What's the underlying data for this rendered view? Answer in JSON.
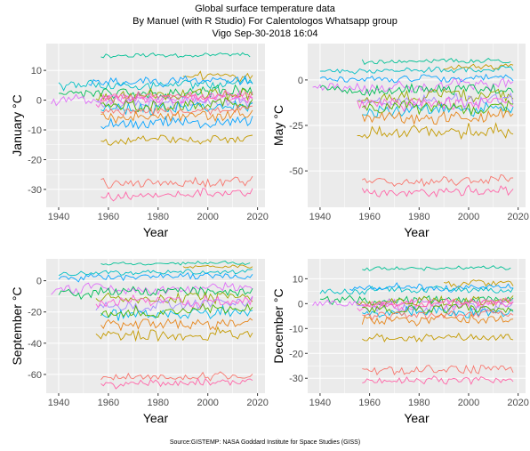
{
  "header": {
    "line1": "Global surface temperature data",
    "line2": "By Manuel (with R Studio) For Calentologos Whatsapp group",
    "line3": "Vigo Sep-30-2018 16:04"
  },
  "footer": {
    "source": "Source:GISTEMP: NASA Goddard Institute for Space Studies (GISS)"
  },
  "colors": {
    "panel_background": "#ebebeb",
    "grid_major": "#ffffff",
    "series_palette": [
      "#f8766d",
      "#e7861b",
      "#c49a00",
      "#95a900",
      "#53b400",
      "#00bc56",
      "#00c094",
      "#00bfc4",
      "#00b6eb",
      "#06a4ff",
      "#a58aff",
      "#df70f8",
      "#fb61d7",
      "#ff66a8"
    ]
  },
  "chart_data": [
    {
      "type": "line",
      "xlabel": "Year",
      "ylabel": "January °C",
      "xlim": [
        1935,
        2023
      ],
      "ylim": [
        -36,
        19
      ],
      "x_ticks": [
        1940,
        1960,
        1980,
        2000,
        2020
      ],
      "y_ticks": [
        10,
        0,
        -10,
        -20,
        -30
      ],
      "x_tick_labels": [
        "1940",
        "1960",
        "1980",
        "2000",
        "2020"
      ],
      "y_tick_labels": [
        "10",
        "0",
        "-10",
        "-20",
        "-30"
      ],
      "series": [
        {
          "color": "#00c094",
          "start": 1957,
          "end": 2017,
          "base": 15,
          "amp": 0.8
        },
        {
          "color": "#c49a00",
          "start": 1990,
          "end": 2018,
          "base": 8,
          "amp": 1.5
        },
        {
          "color": "#00bfc4",
          "start": 1940,
          "end": 2018,
          "base": 5,
          "amp": 1.5
        },
        {
          "color": "#06a4ff",
          "start": 1952,
          "end": 2018,
          "base": 6,
          "amp": 1.5
        },
        {
          "color": "#00bc56",
          "start": 1940,
          "end": 2018,
          "base": 2,
          "amp": 1.8
        },
        {
          "color": "#df70f8",
          "start": 1937,
          "end": 2018,
          "base": 0,
          "amp": 1.5
        },
        {
          "color": "#95a900",
          "start": 1955,
          "end": 2018,
          "base": 1,
          "amp": 2.0
        },
        {
          "color": "#a58aff",
          "start": 1955,
          "end": 2018,
          "base": -1,
          "amp": 2.0
        },
        {
          "color": "#fb61d7",
          "start": 1955,
          "end": 2018,
          "base": 0,
          "amp": 2.0
        },
        {
          "color": "#00b6eb",
          "start": 1957,
          "end": 2018,
          "base": -3,
          "amp": 2.0
        },
        {
          "color": "#53b400",
          "start": 1957,
          "end": 2018,
          "base": -2,
          "amp": 2.0
        },
        {
          "color": "#ff66a8",
          "start": 1957,
          "end": 2018,
          "base": 1,
          "amp": 1.5
        },
        {
          "color": "#f8766d",
          "start": 1957,
          "end": 2018,
          "base": -4,
          "amp": 1.5
        },
        {
          "color": "#e7861b",
          "start": 1957,
          "end": 2018,
          "base": -6,
          "amp": 2.0
        },
        {
          "color": "#06a4ff",
          "start": 1957,
          "end": 2018,
          "base": -8,
          "amp": 2.0
        },
        {
          "color": "#c49a00",
          "start": 1957,
          "end": 2018,
          "base": -14,
          "amp": 1.5
        },
        {
          "color": "#f8766d",
          "start": 1957,
          "end": 2018,
          "base": -28,
          "amp": 1.8
        },
        {
          "color": "#ff66a8",
          "start": 1957,
          "end": 2018,
          "base": -32,
          "amp": 1.5
        }
      ]
    },
    {
      "type": "line",
      "xlabel": "Year",
      "ylabel": "May °C",
      "xlim": [
        1935,
        2023
      ],
      "ylim": [
        -70,
        20
      ],
      "x_ticks": [
        1940,
        1960,
        1980,
        2000,
        2020
      ],
      "y_ticks": [
        0,
        -25,
        -50
      ],
      "x_tick_labels": [
        "1940",
        "1960",
        "1980",
        "2000",
        "2020"
      ],
      "y_tick_labels": [
        "0",
        "-25",
        "-50"
      ],
      "series": [
        {
          "color": "#00c094",
          "start": 1957,
          "end": 2017,
          "base": 10,
          "amp": 1.5
        },
        {
          "color": "#00bfc4",
          "start": 1940,
          "end": 2018,
          "base": 5,
          "amp": 1.5
        },
        {
          "color": "#06a4ff",
          "start": 1940,
          "end": 2018,
          "base": 0,
          "amp": 2.0
        },
        {
          "color": "#c49a00",
          "start": 1990,
          "end": 2018,
          "base": 7,
          "amp": 1.5
        },
        {
          "color": "#df70f8",
          "start": 1937,
          "end": 2018,
          "base": -4,
          "amp": 3.0
        },
        {
          "color": "#00bc56",
          "start": 1940,
          "end": 2018,
          "base": -6,
          "amp": 3.0
        },
        {
          "color": "#95a900",
          "start": 1955,
          "end": 2018,
          "base": -10,
          "amp": 3.5
        },
        {
          "color": "#a58aff",
          "start": 1955,
          "end": 2018,
          "base": -12,
          "amp": 3.5
        },
        {
          "color": "#fb61d7",
          "start": 1955,
          "end": 2018,
          "base": -14,
          "amp": 3.5
        },
        {
          "color": "#00b6eb",
          "start": 1957,
          "end": 2018,
          "base": -18,
          "amp": 3.5
        },
        {
          "color": "#53b400",
          "start": 1957,
          "end": 2018,
          "base": -16,
          "amp": 3.5
        },
        {
          "color": "#e7861b",
          "start": 1957,
          "end": 2018,
          "base": -22,
          "amp": 3.5
        },
        {
          "color": "#c49a00",
          "start": 1955,
          "end": 2018,
          "base": -30,
          "amp": 4.0
        },
        {
          "color": "#f8766d",
          "start": 1957,
          "end": 2018,
          "base": -56,
          "amp": 2.5
        },
        {
          "color": "#ff66a8",
          "start": 1957,
          "end": 2018,
          "base": -62,
          "amp": 2.5
        }
      ]
    },
    {
      "type": "line",
      "xlabel": "Year",
      "ylabel": "September °C",
      "xlim": [
        1935,
        2023
      ],
      "ylim": [
        -72,
        14
      ],
      "x_ticks": [
        1940,
        1960,
        1980,
        2000,
        2020
      ],
      "y_ticks": [
        0,
        -20,
        -40,
        -60
      ],
      "x_tick_labels": [
        "1940",
        "1960",
        "1980",
        "2000",
        "2020"
      ],
      "y_tick_labels": [
        "0",
        "-20",
        "-40",
        "-60"
      ],
      "series": [
        {
          "color": "#00c094",
          "start": 1957,
          "end": 2017,
          "base": 11,
          "amp": 1.0
        },
        {
          "color": "#00bfc4",
          "start": 1940,
          "end": 2018,
          "base": 5,
          "amp": 1.5
        },
        {
          "color": "#06a4ff",
          "start": 1940,
          "end": 2018,
          "base": 2,
          "amp": 2.0
        },
        {
          "color": "#c49a00",
          "start": 1990,
          "end": 2018,
          "base": 9,
          "amp": 1.5
        },
        {
          "color": "#df70f8",
          "start": 1937,
          "end": 2018,
          "base": -6,
          "amp": 3.0
        },
        {
          "color": "#00bc56",
          "start": 1940,
          "end": 2018,
          "base": -8,
          "amp": 3.0
        },
        {
          "color": "#95a900",
          "start": 1955,
          "end": 2018,
          "base": -12,
          "amp": 3.5
        },
        {
          "color": "#a58aff",
          "start": 1955,
          "end": 2018,
          "base": -16,
          "amp": 3.5
        },
        {
          "color": "#fb61d7",
          "start": 1955,
          "end": 2018,
          "base": -14,
          "amp": 3.5
        },
        {
          "color": "#00b6eb",
          "start": 1957,
          "end": 2018,
          "base": -22,
          "amp": 4.0
        },
        {
          "color": "#53b400",
          "start": 1957,
          "end": 2018,
          "base": -20,
          "amp": 3.5
        },
        {
          "color": "#e7861b",
          "start": 1957,
          "end": 2018,
          "base": -28,
          "amp": 3.5
        },
        {
          "color": "#c49a00",
          "start": 1955,
          "end": 2018,
          "base": -36,
          "amp": 4.0
        },
        {
          "color": "#f8766d",
          "start": 1957,
          "end": 2018,
          "base": -62,
          "amp": 2.5
        },
        {
          "color": "#ff66a8",
          "start": 1957,
          "end": 2018,
          "base": -66,
          "amp": 2.5
        }
      ]
    },
    {
      "type": "line",
      "xlabel": "Year",
      "ylabel": "December °C",
      "xlim": [
        1935,
        2023
      ],
      "ylim": [
        -36,
        18
      ],
      "x_ticks": [
        1940,
        1960,
        1980,
        2000,
        2020
      ],
      "y_ticks": [
        10,
        0,
        -10,
        -20,
        -30
      ],
      "x_tick_labels": [
        "1940",
        "1960",
        "1980",
        "2000",
        "2020"
      ],
      "y_tick_labels": [
        "10",
        "0",
        "-10",
        "-20",
        "-30"
      ],
      "series": [
        {
          "color": "#00c094",
          "start": 1957,
          "end": 2017,
          "base": 14,
          "amp": 0.8
        },
        {
          "color": "#c49a00",
          "start": 1990,
          "end": 2018,
          "base": 8,
          "amp": 1.5
        },
        {
          "color": "#00bfc4",
          "start": 1940,
          "end": 2018,
          "base": 5,
          "amp": 1.5
        },
        {
          "color": "#06a4ff",
          "start": 1952,
          "end": 2018,
          "base": 6,
          "amp": 1.5
        },
        {
          "color": "#00bc56",
          "start": 1940,
          "end": 2018,
          "base": 1,
          "amp": 1.8
        },
        {
          "color": "#df70f8",
          "start": 1937,
          "end": 2018,
          "base": 0,
          "amp": 1.5
        },
        {
          "color": "#95a900",
          "start": 1955,
          "end": 2018,
          "base": 0,
          "amp": 2.0
        },
        {
          "color": "#a58aff",
          "start": 1955,
          "end": 2018,
          "base": -2,
          "amp": 2.0
        },
        {
          "color": "#fb61d7",
          "start": 1955,
          "end": 2018,
          "base": -1,
          "amp": 2.0
        },
        {
          "color": "#00b6eb",
          "start": 1957,
          "end": 2018,
          "base": -4,
          "amp": 2.0
        },
        {
          "color": "#53b400",
          "start": 1957,
          "end": 2018,
          "base": -3,
          "amp": 2.0
        },
        {
          "color": "#ff66a8",
          "start": 1957,
          "end": 2018,
          "base": 0,
          "amp": 1.5
        },
        {
          "color": "#f8766d",
          "start": 1957,
          "end": 2018,
          "base": -5,
          "amp": 1.5
        },
        {
          "color": "#e7861b",
          "start": 1957,
          "end": 2018,
          "base": -7,
          "amp": 2.0
        },
        {
          "color": "#c49a00",
          "start": 1957,
          "end": 2018,
          "base": -14,
          "amp": 1.5
        },
        {
          "color": "#f8766d",
          "start": 1957,
          "end": 2018,
          "base": -27,
          "amp": 1.8
        },
        {
          "color": "#ff66a8",
          "start": 1957,
          "end": 2018,
          "base": -31,
          "amp": 1.5
        }
      ]
    }
  ]
}
